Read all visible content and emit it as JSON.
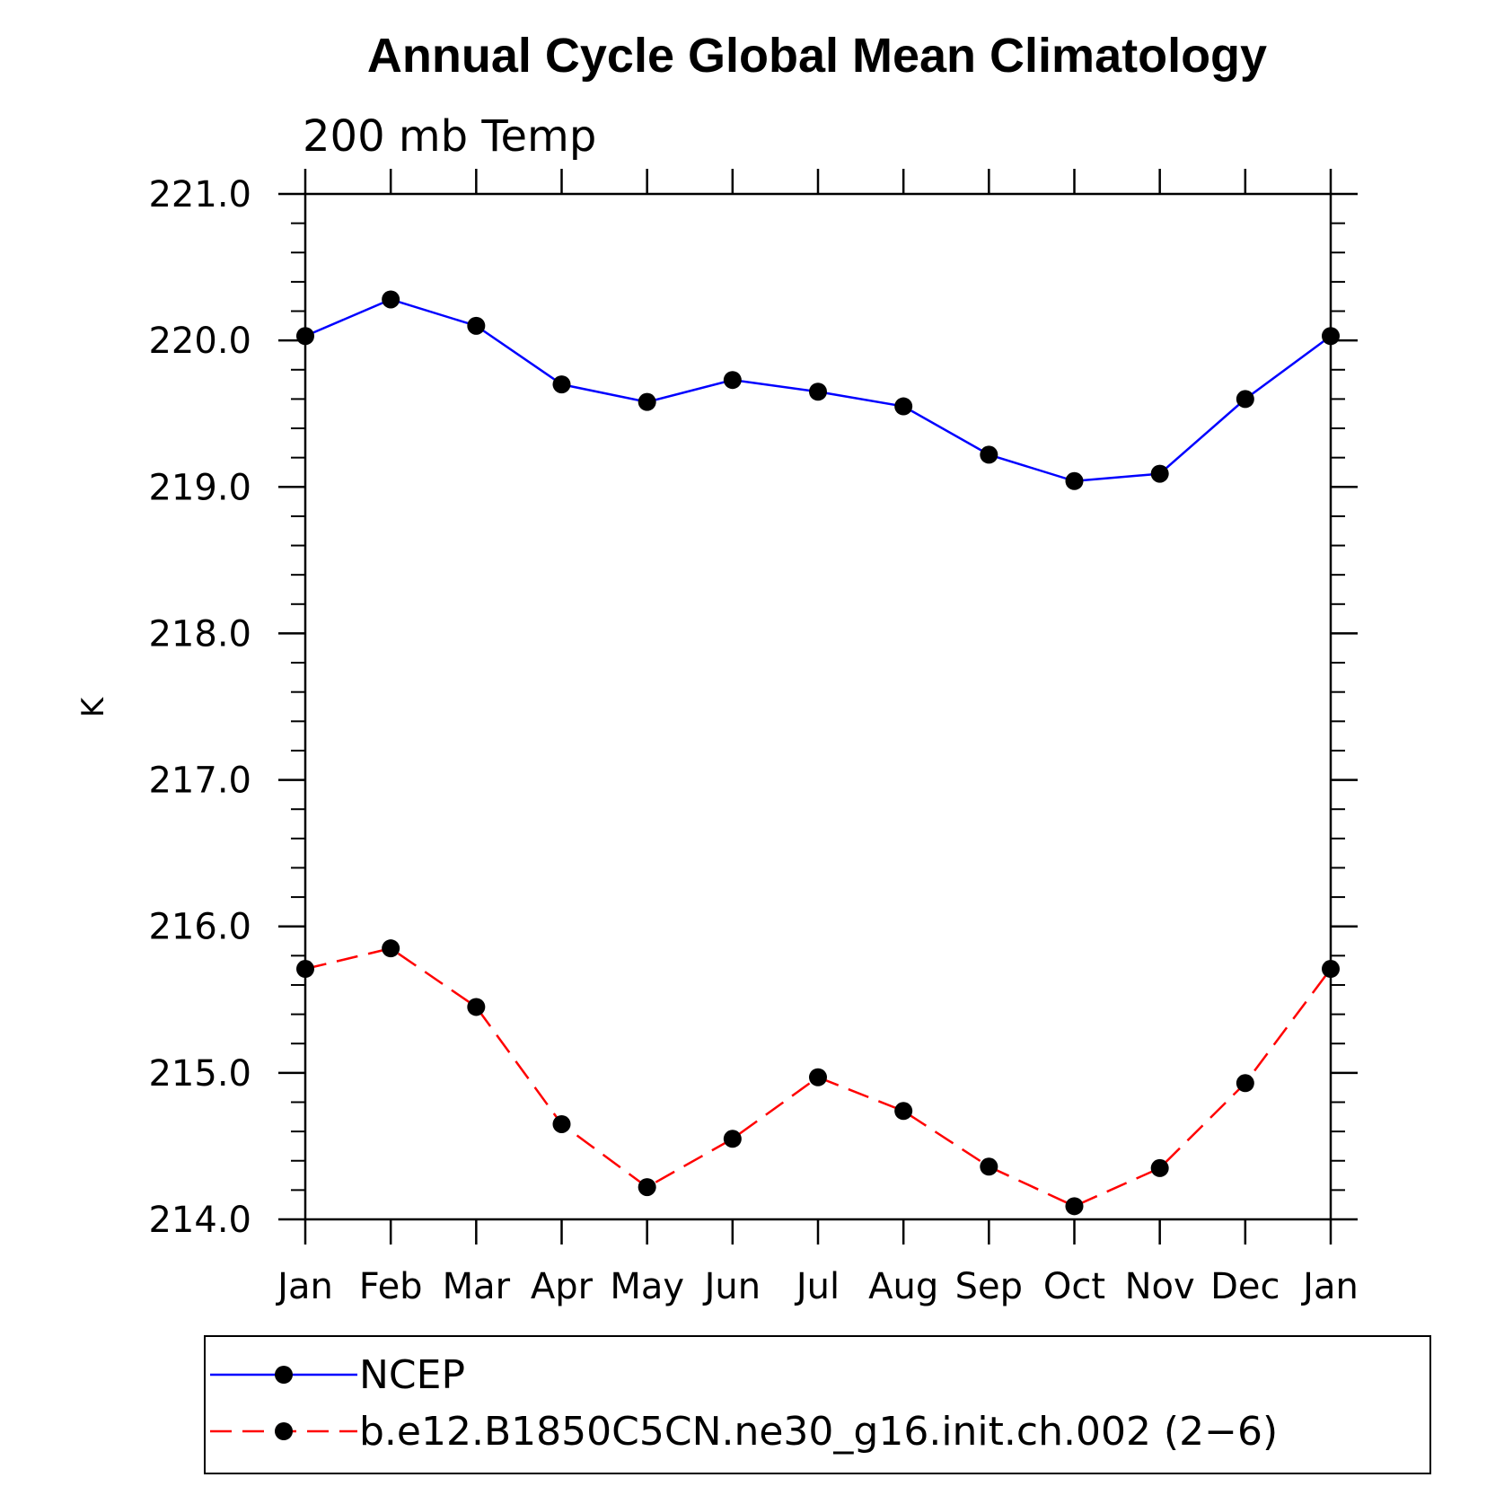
{
  "chart_data": {
    "type": "line",
    "title": "Annual Cycle Global Mean Climatology",
    "subtitle": "200 mb Temp",
    "xlabel": "",
    "ylabel": "K",
    "categories": [
      "Jan",
      "Feb",
      "Mar",
      "Apr",
      "May",
      "Jun",
      "Jul",
      "Aug",
      "Sep",
      "Oct",
      "Nov",
      "Dec",
      "Jan"
    ],
    "ylim": [
      214.0,
      221.0
    ],
    "yticks": [
      "214.0",
      "215.0",
      "216.0",
      "217.0",
      "218.0",
      "219.0",
      "220.0",
      "221.0"
    ],
    "series": [
      {
        "name": "NCEP",
        "color": "#0000ff",
        "dash": "solid",
        "values": [
          220.03,
          220.28,
          220.1,
          219.7,
          219.58,
          219.73,
          219.65,
          219.55,
          219.22,
          219.04,
          219.09,
          219.6,
          220.03
        ]
      },
      {
        "name": "b.e12.B1850C5CN.ne30_g16.init.ch.002 (2−6)",
        "color": "#ff0000",
        "dash": "dashed",
        "values": [
          215.71,
          215.85,
          215.45,
          214.65,
          214.22,
          214.55,
          214.97,
          214.74,
          214.36,
          214.09,
          214.35,
          214.93,
          215.71
        ]
      }
    ],
    "legend_position": "bottom"
  }
}
